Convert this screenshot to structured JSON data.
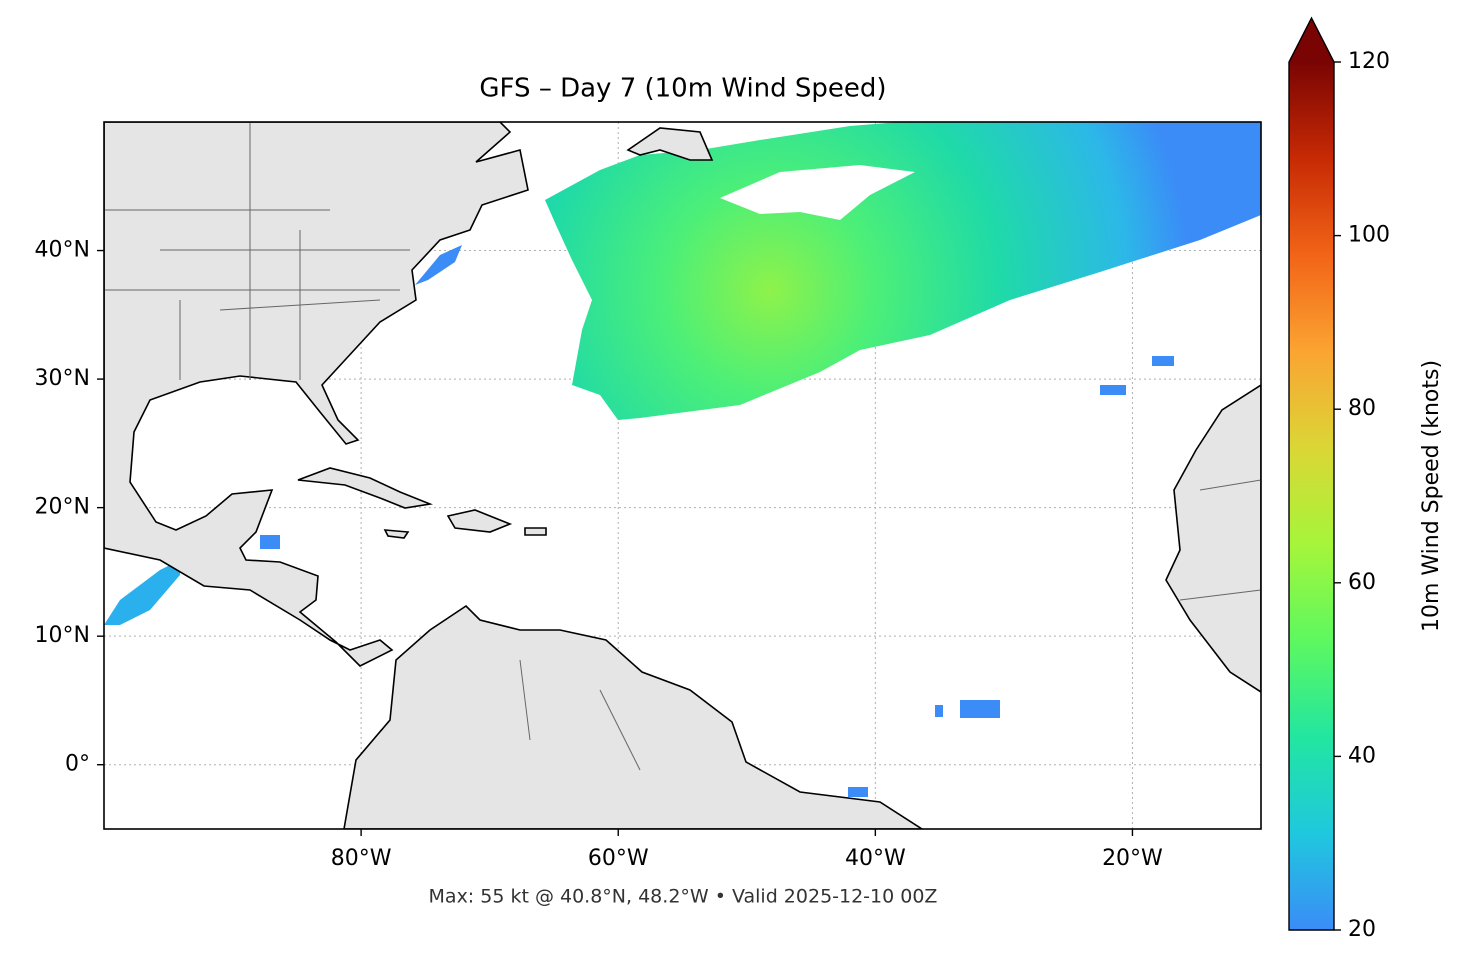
{
  "map": {
    "title": "GFS – Day 7 (10m Wind Speed)",
    "xlim": [
      -100,
      -10
    ],
    "ylim": [
      -5,
      50
    ],
    "xticks": [
      {
        "value": -80,
        "label": "80°W"
      },
      {
        "value": -60,
        "label": "60°W"
      },
      {
        "value": -40,
        "label": "40°W"
      },
      {
        "value": -20,
        "label": "20°W"
      }
    ],
    "yticks": [
      {
        "value": 0,
        "label": "0°"
      },
      {
        "value": 10,
        "label": "10°N"
      },
      {
        "value": 20,
        "label": "20°N"
      },
      {
        "value": 30,
        "label": "30°N"
      },
      {
        "value": 40,
        "label": "40°N"
      }
    ],
    "grid": true,
    "footer": "Max: 55 kt @ 40.8°N, 48.2°W • Valid 2025-12-10 00Z",
    "colorbar": {
      "label": "10m Wind Speed (knots)",
      "lim": [
        20,
        120
      ],
      "ticks": [
        20,
        40,
        60,
        80,
        100,
        120
      ],
      "colormap": [
        "#3b8cf7",
        "#1fc8de",
        "#22e6a0",
        "#5df860",
        "#a6f53a",
        "#dbd636",
        "#fba432",
        "#f26417",
        "#c72a04",
        "#7a0403"
      ]
    }
  }
}
